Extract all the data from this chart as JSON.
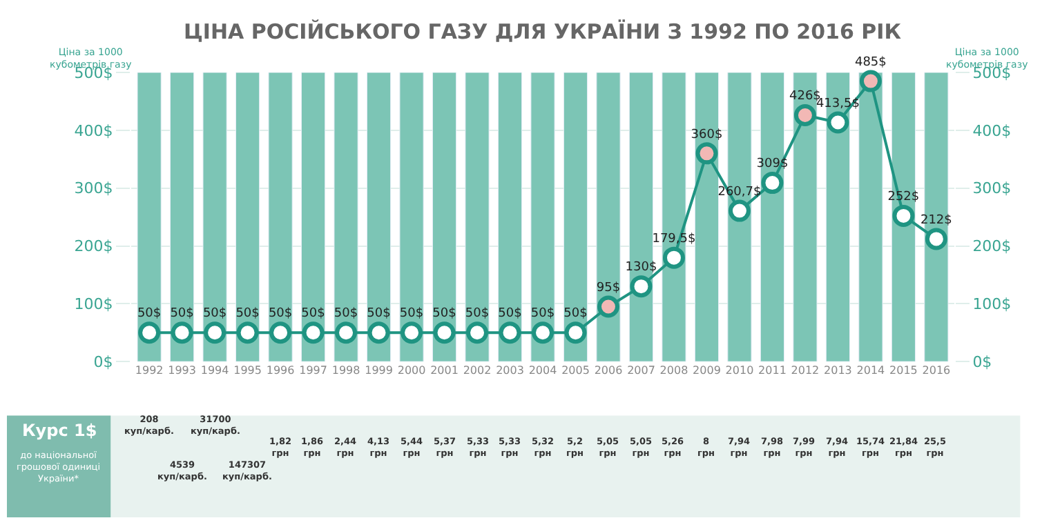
{
  "chart_data": {
    "type": "line",
    "title": "ЦІНА РОСІЙСЬКОГО ГАЗУ ДЛЯ УКРАЇНИ З 1992 ПО 2016 РІК",
    "ylabel": "Ціна за 1000 кубометрів газу",
    "y2label": "Ціна за 1000 кубометрів газу",
    "categories": [
      "1992",
      "1993",
      "1994",
      "1995",
      "1996",
      "1997",
      "1998",
      "1999",
      "2000",
      "2001",
      "2002",
      "2003",
      "2004",
      "2005",
      "2006",
      "2007",
      "2008",
      "2009",
      "2010",
      "2011",
      "2012",
      "2013",
      "2014",
      "2015",
      "2016"
    ],
    "series": [
      {
        "type": "bar",
        "color": "#7cc5b5",
        "values": [
          500,
          500,
          500,
          500,
          500,
          500,
          500,
          500,
          500,
          500,
          500,
          500,
          500,
          500,
          500,
          500,
          500,
          500,
          500,
          500,
          500,
          500,
          500,
          500,
          500
        ]
      },
      {
        "color": "#1f9482",
        "values": [
          50,
          50,
          50,
          50,
          50,
          50,
          50,
          50,
          50,
          50,
          50,
          50,
          50,
          50,
          95,
          130,
          179.5,
          360,
          260.7,
          309,
          426,
          413.5,
          485,
          252,
          212
        ],
        "colors": [
          "#ffffff",
          "#ffffff",
          "#ffffff",
          "#ffffff",
          "#ffffff",
          "#ffffff",
          "#ffffff",
          "#ffffff",
          "#ffffff",
          "#ffffff",
          "#ffffff",
          "#ffffff",
          "#ffffff",
          "#ffffff",
          "#f2b8b5",
          "#ffffff",
          "#ffffff",
          "#f2b8b5",
          "#ffffff",
          "#ffffff",
          "#f2b8b5",
          "#ffffff",
          "#f2b8b5",
          "#ffffff",
          "#ffffff"
        ],
        "value_labels": [
          "50$",
          "50$",
          "50$",
          "50$",
          "50$",
          "50$",
          "50$",
          "50$",
          "50$",
          "50$",
          "50$",
          "50$",
          "50$",
          "50$",
          "95$",
          "130$",
          "179,5$",
          "360$",
          "260,7$",
          "309$",
          "426$",
          "413,5$",
          "485$",
          "252$",
          "212$"
        ]
      }
    ],
    "ylim": [
      0,
      500
    ],
    "yticks": [
      {
        "value": 0,
        "label": "0$"
      },
      {
        "value": 100,
        "label": "100$"
      },
      {
        "value": 200,
        "label": "200$"
      },
      {
        "value": 300,
        "label": "300$"
      },
      {
        "value": 400,
        "label": "400$"
      },
      {
        "value": 500,
        "label": "500$"
      }
    ],
    "y2lim": [
      0,
      500
    ],
    "y2ticks": [
      {
        "value": 0,
        "label": "0$"
      },
      {
        "value": 100,
        "label": "100$"
      },
      {
        "value": 200,
        "label": "200$"
      },
      {
        "value": 300,
        "label": "300$"
      },
      {
        "value": 400,
        "label": "400$"
      },
      {
        "value": 500,
        "label": "500$"
      }
    ],
    "grid": "y",
    "marker": "circle",
    "line_style": "solid",
    "annotations": [
      "Курс 1$",
      "до національної грошової одиниці України*",
      "208 куп/карб.",
      "4539 куп/карб.",
      "31700 куп/карб.",
      "147307 куп/карб.",
      "1,82 грн",
      "1,86 грн",
      "2,44 грн",
      "4,13 грн",
      "5,44 грн",
      "5,37 грн",
      "5,33 грн",
      "5,33 грн",
      "5,32 грн",
      "5,2 грн",
      "5,05 грн",
      "5,05 грн",
      "5,26 грн",
      "8 грн",
      "7,94 грн",
      "7,98 грн",
      "7,99 грн",
      "7,94 грн",
      "15,74 грн",
      "21,84 грн",
      "25,5 грн"
    ]
  }
}
